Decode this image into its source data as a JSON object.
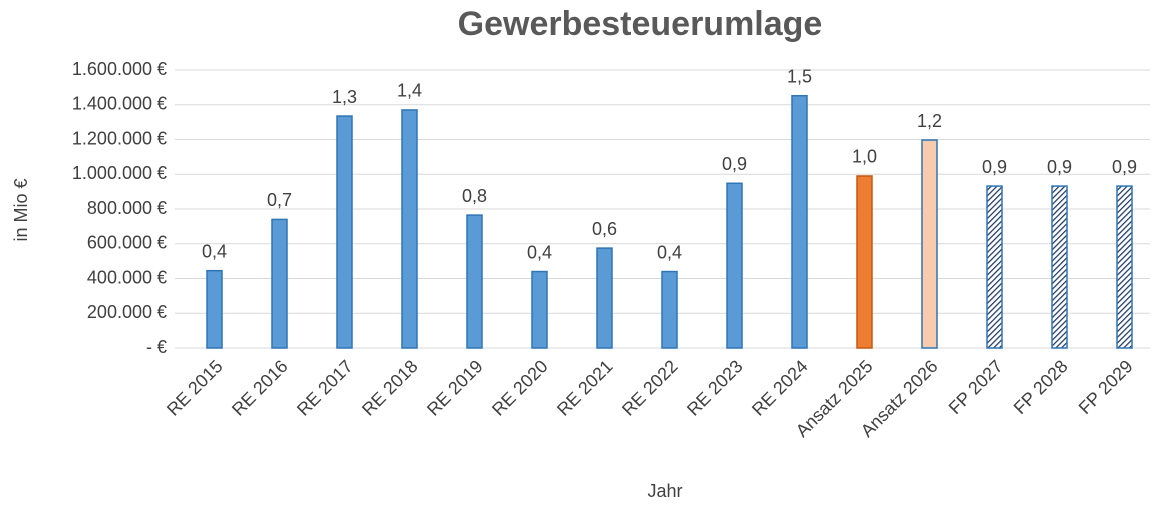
{
  "chart_data": {
    "type": "bar",
    "title": "Gewerbesteuerumlage",
    "x_label": "Jahr",
    "y_label": "in Mio €",
    "categories": [
      "RE 2015",
      "RE 2016",
      "RE 2017",
      "RE 2018",
      "RE 2019",
      "RE 2020",
      "RE 2021",
      "RE 2022",
      "RE 2023",
      "RE 2024",
      "Ansatz 2025",
      "Ansatz 2026",
      "FP 2027",
      "FP 2028",
      "FP 2029"
    ],
    "values": [
      445000,
      740000,
      1335000,
      1370000,
      765000,
      440000,
      575000,
      440000,
      948000,
      1452000,
      990000,
      1197000,
      932000,
      932000,
      932000
    ],
    "value_labels": [
      "0,4",
      "0,7",
      "1,3",
      "1,4",
      "0,8",
      "0,4",
      "0,6",
      "0,4",
      "0,9",
      "1,5",
      "1,0",
      "1,2",
      "0,9",
      "0,9",
      "0,9"
    ],
    "colors": [
      "#5b9bd5",
      "#5b9bd5",
      "#5b9bd5",
      "#5b9bd5",
      "#5b9bd5",
      "#5b9bd5",
      "#5b9bd5",
      "#5b9bd5",
      "#5b9bd5",
      "#5b9bd5",
      "#ed7d31",
      "#f8cbad",
      "#1f3864",
      "#1f3864",
      "#1f3864"
    ],
    "hatched": [
      false,
      false,
      false,
      false,
      false,
      false,
      false,
      false,
      false,
      false,
      false,
      false,
      true,
      true,
      true
    ],
    "ylim": [
      0,
      1600000
    ],
    "yticks": [
      {
        "value": 0,
        "label": "- €"
      },
      {
        "value": 200000,
        "label": "200.000 €"
      },
      {
        "value": 400000,
        "label": "400.000 €"
      },
      {
        "value": 600000,
        "label": "600.000 €"
      },
      {
        "value": 800000,
        "label": "800.000 €"
      },
      {
        "value": 1000000,
        "label": "1.000.000 €"
      },
      {
        "value": 1200000,
        "label": "1.200.000 €"
      },
      {
        "value": 1400000,
        "label": "1.400.000 €"
      },
      {
        "value": 1600000,
        "label": "1.600.000 €"
      }
    ],
    "grid": true
  }
}
